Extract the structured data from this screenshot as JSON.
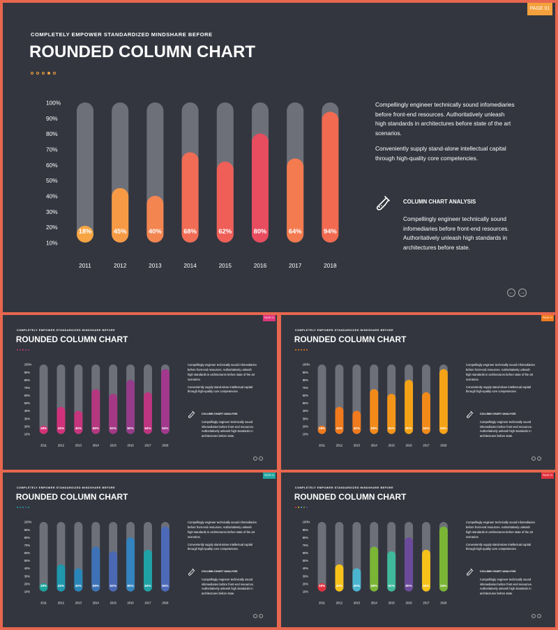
{
  "slide": {
    "page_tag": "PAGE 01",
    "subtitle": "COMPLETELY EMPOWER STANDARDIZED MINDSHARE BEFORE",
    "title": "ROUNDED COLUMN CHART",
    "paragraph1": "Compellingly engineer technically sound infomediaries before front-end resources. Authoritatively unleash high standards in architectures before state of the art scenarios.",
    "paragraph2": "Conveniently supply stand-alone intellectual capital through high-quality core competencies.",
    "analysis_title": "COLUMN CHART ANALYSIS",
    "analysis_text": "Compellingly engineer technically sound infomediaries before front-end resources. Authoritatively unleash high standards in architectures before state.",
    "nav_prev": "←",
    "nav_next": "→",
    "analysis_icon": "flask-icon"
  },
  "chart_data": {
    "type": "bar",
    "categories": [
      "2011",
      "2012",
      "2013",
      "2014",
      "2015",
      "2016",
      "2017",
      "2018"
    ],
    "values": [
      18,
      45,
      40,
      68,
      62,
      80,
      64,
      94
    ],
    "value_labels": [
      "18%",
      "45%",
      "40%",
      "68%",
      "62%",
      "80%",
      "64%",
      "94%"
    ],
    "ylim": [
      10,
      100
    ],
    "yticks": [
      "10%",
      "20%",
      "30%",
      "40%",
      "50%",
      "60%",
      "70%",
      "80%",
      "90%",
      "100%"
    ]
  },
  "variants": [
    {
      "id": "main",
      "tag_color": "#f4a13d",
      "dot_colors": [
        "#f4a13d",
        "#f4a13d",
        "#f4a13d",
        "#f4a13d",
        "#f4a13d"
      ],
      "bar_colors": [
        "#f7a542",
        "#f79a45",
        "#f38550",
        "#f06c55",
        "#ef5f58",
        "#e84c5f",
        "#f47b4f",
        "#f26a50"
      ]
    },
    {
      "id": "magenta",
      "tag_color": "#e0357a",
      "dot_colors": [
        "#c43573",
        "#b73a78",
        "#e0357a",
        "#c43573",
        "#9a3a87"
      ],
      "bar_colors": [
        "#d63177",
        "#cf327a",
        "#c6347d",
        "#b4377f",
        "#a53885",
        "#953b89",
        "#bd3580",
        "#a1388e"
      ]
    },
    {
      "id": "orange",
      "tag_color": "#f07a1d",
      "dot_colors": [
        "#f07a1d",
        "#f07a1d",
        "#f07a1d",
        "#f07a1d",
        "#f07a1d"
      ],
      "bar_colors": [
        "#f07a1d",
        "#f07a1d",
        "#f07a1d",
        "#f28a1a",
        "#f39518",
        "#f5a316",
        "#f28a1a",
        "#f5a316"
      ]
    },
    {
      "id": "teal",
      "tag_color": "#1fa6a0",
      "dot_colors": [
        "#1fa6a0",
        "#2b8fb0",
        "#1fa6a0",
        "#3f6fb0",
        "#1fa6a0"
      ],
      "bar_colors": [
        "#1ca39b",
        "#1f97ad",
        "#2a86b8",
        "#3d73b6",
        "#4a68b3",
        "#3383be",
        "#1fa2a6",
        "#4c6ab8"
      ]
    },
    {
      "id": "multi",
      "tag_color": "#e0323e",
      "dot_colors": [
        "#e0323e",
        "#f6c21a",
        "#4bb5d0",
        "#7ab536",
        "#6b4a9b"
      ],
      "bar_colors": [
        "#e0323e",
        "#f6c21a",
        "#4bb5d0",
        "#7ab536",
        "#3fb89c",
        "#6b4a9b",
        "#f6c21a",
        "#7ab536"
      ]
    }
  ]
}
